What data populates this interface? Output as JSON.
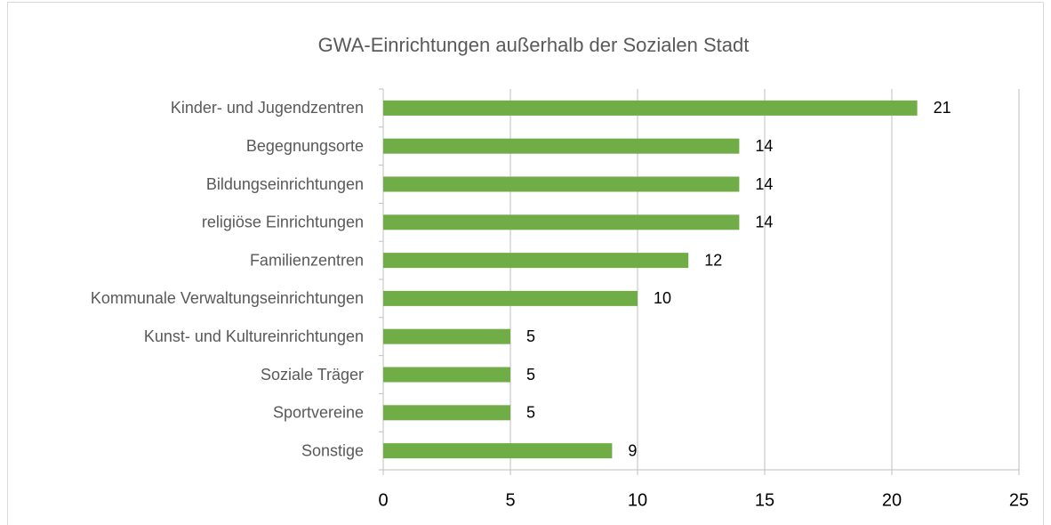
{
  "chart_data": {
    "type": "bar",
    "orientation": "horizontal",
    "title": "GWA-Einrichtungen außerhalb der Sozialen Stadt",
    "categories": [
      "Kinder- und Jugendzentren",
      "Begegnungsorte",
      "Bildungseinrichtungen",
      "religiöse Einrichtungen",
      "Familienzentren",
      "Kommunale Verwaltungseinrichtungen",
      "Kunst- und Kultureinrichtungen",
      "Soziale Träger",
      "Sportvereine",
      "Sonstige"
    ],
    "values": [
      21,
      14,
      14,
      14,
      12,
      10,
      5,
      5,
      5,
      9
    ],
    "color": "#70ad47",
    "xlim": [
      0,
      25
    ],
    "xticks": [
      0,
      5,
      10,
      15,
      20,
      25
    ],
    "grid": true
  }
}
